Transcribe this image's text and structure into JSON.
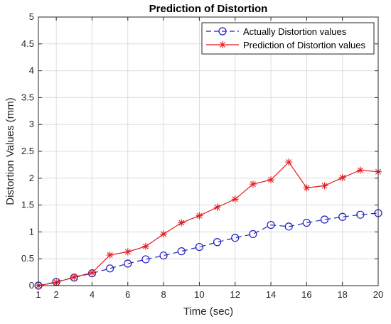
{
  "chart_data": {
    "type": "line",
    "title": "Prediction of Distortion",
    "xlabel": "Time (sec)",
    "ylabel": "Distortion Values (mm)",
    "xlim": [
      1,
      20
    ],
    "ylim": [
      0,
      5
    ],
    "xticks": [
      2,
      4,
      6,
      8,
      10,
      12,
      14,
      16,
      18,
      20
    ],
    "yticks": [
      0,
      0.5,
      1,
      1.5,
      2,
      2.5,
      3,
      3.5,
      4,
      4.5,
      5
    ],
    "grid": true,
    "legend_position": "top-right",
    "x": [
      1,
      2,
      3,
      4,
      5,
      6,
      7,
      8,
      9,
      10,
      11,
      12,
      13,
      14,
      15,
      16,
      17,
      18,
      19,
      20
    ],
    "series": [
      {
        "name": "Actually Distortion values",
        "color": "#1f1fbf",
        "line_style": "dashed",
        "marker": "circle",
        "values": [
          0.0,
          0.07,
          0.15,
          0.23,
          0.32,
          0.41,
          0.49,
          0.56,
          0.64,
          0.72,
          0.81,
          0.89,
          0.96,
          1.13,
          1.1,
          1.17,
          1.23,
          1.28,
          1.32,
          1.35
        ]
      },
      {
        "name": "Prediction of Distortion values",
        "color": "#e31a1c",
        "line_style": "solid",
        "marker": "star",
        "values": [
          0.0,
          0.06,
          0.16,
          0.24,
          0.57,
          0.63,
          0.73,
          0.96,
          1.17,
          1.3,
          1.46,
          1.61,
          1.89,
          1.97,
          2.3,
          1.82,
          1.86,
          2.01,
          2.15,
          2.12
        ]
      }
    ]
  }
}
